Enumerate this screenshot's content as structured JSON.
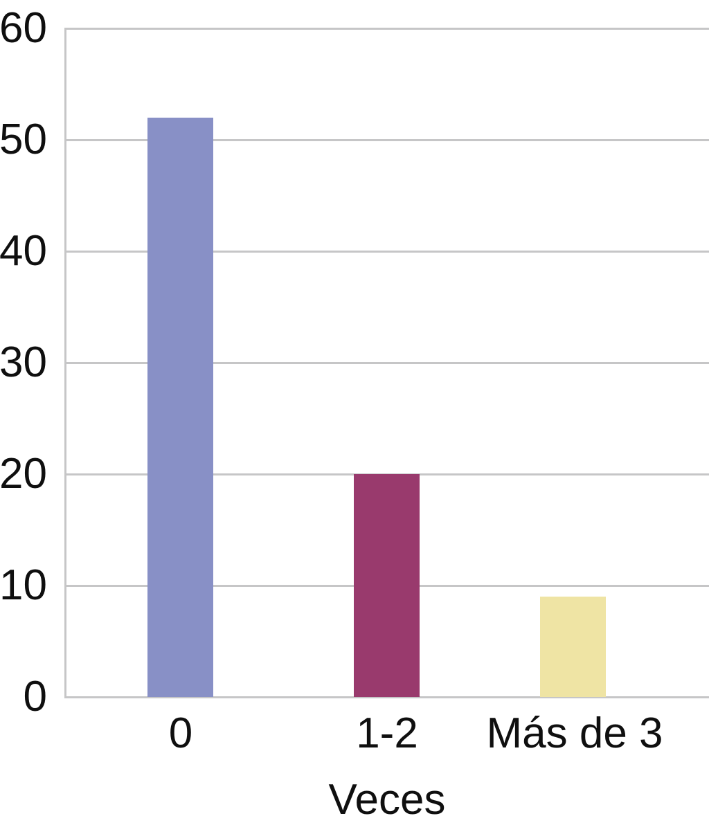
{
  "chart_data": {
    "type": "bar",
    "categories": [
      "0",
      "1-2",
      "Más de 3"
    ],
    "values": [
      52,
      20,
      9
    ],
    "bar_colors": [
      "#8890c6",
      "#993a6d",
      "#efe4a4"
    ],
    "xlabel": "Veces",
    "ylabel": "",
    "ylim": [
      0,
      60
    ],
    "yticks": [
      0,
      10,
      20,
      30,
      40,
      50,
      60
    ],
    "grid": true,
    "legend": false,
    "gridline_color": "#c6c6c7",
    "axis_color": "#c6c6c7",
    "text_color": "#0f0f0f",
    "background_color": "#ffffff"
  }
}
